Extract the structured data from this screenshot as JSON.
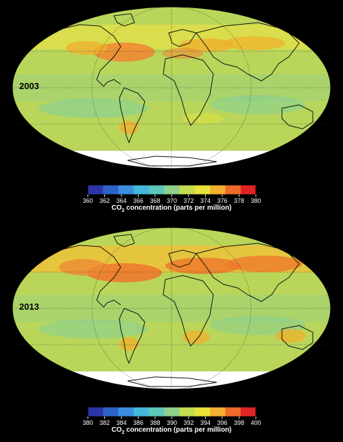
{
  "panels": [
    {
      "year": "2003",
      "colorbar": {
        "ticks": [
          "360",
          "362",
          "364",
          "366",
          "368",
          "370",
          "372",
          "374",
          "376",
          "378",
          "380"
        ],
        "label_prefix": "CO",
        "label_sub": "2",
        "label_suffix": " concentration (parts per million)"
      }
    },
    {
      "year": "2013",
      "colorbar": {
        "ticks": [
          "380",
          "382",
          "384",
          "386",
          "388",
          "390",
          "392",
          "394",
          "396",
          "398",
          "400"
        ],
        "label_prefix": "CO",
        "label_sub": "2",
        "label_suffix": " concentration (parts per million)"
      }
    }
  ],
  "palette": {
    "colorbar_stops": [
      "#2b35a8",
      "#2e62c8",
      "#3b8ede",
      "#44b8dc",
      "#5cc8b8",
      "#8fd08a",
      "#c4dc50",
      "#e9e23a",
      "#f4b030",
      "#ee6a2a",
      "#e02424"
    ],
    "map_base": "#b9d65a",
    "no_data": "#ffffff",
    "background": "#000000",
    "coastline": "#111111"
  },
  "map": {
    "projection": "mollweide",
    "grid": "dotted"
  }
}
